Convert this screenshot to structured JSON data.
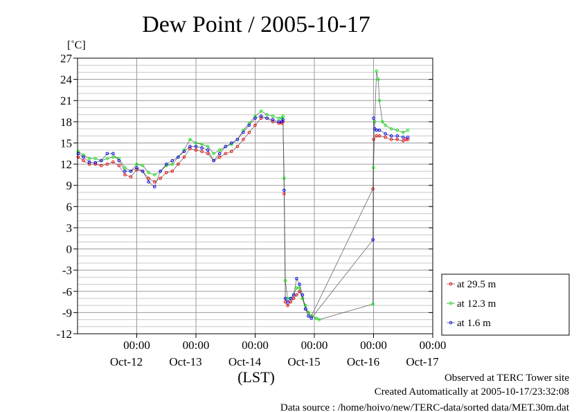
{
  "chart_data": {
    "type": "line",
    "title": "Dew Point / 2005-10-17",
    "ylabel": "[˚C]",
    "xlabel": "(LST)",
    "ylim": [
      -12,
      27
    ],
    "yticks": [
      27,
      24,
      21,
      18,
      15,
      12,
      9,
      6,
      3,
      0,
      -3,
      -6,
      -9,
      -12
    ],
    "xlim": [
      -1,
      5.0
    ],
    "x_unit": "days after Oct-12 00:00 LST",
    "x_ticks": [
      {
        "x": 0,
        "time": "00:00",
        "date": "Oct-12"
      },
      {
        "x": 1,
        "time": "00:00",
        "date": "Oct-13"
      },
      {
        "x": 2,
        "time": "00:00",
        "date": "Oct-14"
      },
      {
        "x": 3,
        "time": "00:00",
        "date": "Oct-15"
      },
      {
        "x": 4,
        "time": "00:00",
        "date": "Oct-16"
      },
      {
        "x": 5,
        "time": "00:00",
        "date": "Oct-17"
      }
    ],
    "grid": true,
    "legend_position": "right",
    "series": [
      {
        "name": "at 29.5 m",
        "color": "#ff0000",
        "points": [
          [
            -0.99,
            13.0
          ],
          [
            -0.9,
            12.5
          ],
          [
            -0.8,
            12.0
          ],
          [
            -0.7,
            12.0
          ],
          [
            -0.6,
            11.8
          ],
          [
            -0.5,
            12.0
          ],
          [
            -0.4,
            12.3
          ],
          [
            -0.3,
            11.8
          ],
          [
            -0.2,
            10.5
          ],
          [
            -0.1,
            10.2
          ],
          [
            0.0,
            11.2
          ],
          [
            0.1,
            11.0
          ],
          [
            0.2,
            10.0
          ],
          [
            0.3,
            9.5
          ],
          [
            0.4,
            10.0
          ],
          [
            0.5,
            10.8
          ],
          [
            0.6,
            11.0
          ],
          [
            0.7,
            12.0
          ],
          [
            0.8,
            13.0
          ],
          [
            0.9,
            14.2
          ],
          [
            1.0,
            14.0
          ],
          [
            1.1,
            13.8
          ],
          [
            1.2,
            13.5
          ],
          [
            1.3,
            12.5
          ],
          [
            1.4,
            13.0
          ],
          [
            1.5,
            13.5
          ],
          [
            1.6,
            13.8
          ],
          [
            1.7,
            14.5
          ],
          [
            1.8,
            15.5
          ],
          [
            1.9,
            16.5
          ],
          [
            2.0,
            17.5
          ],
          [
            2.1,
            18.5
          ],
          [
            2.2,
            18.5
          ],
          [
            2.3,
            18.0
          ],
          [
            2.4,
            17.8
          ],
          [
            2.45,
            17.8
          ],
          [
            2.47,
            18.0
          ],
          [
            2.49,
            7.8
          ],
          [
            2.51,
            -7.5
          ],
          [
            2.55,
            -8.0
          ],
          [
            2.6,
            -7.5
          ],
          [
            2.65,
            -7.0
          ],
          [
            2.7,
            -6.5
          ],
          [
            2.75,
            -6.0
          ],
          [
            2.8,
            -7.0
          ],
          [
            2.85,
            -8.5
          ],
          [
            2.9,
            -9.0
          ],
          [
            2.95,
            -9.5
          ],
          [
            3.99,
            8.5
          ],
          [
            4.0,
            15.5
          ],
          [
            4.05,
            16.0
          ],
          [
            4.1,
            16.0
          ],
          [
            4.2,
            15.8
          ],
          [
            4.3,
            15.5
          ],
          [
            4.4,
            15.5
          ],
          [
            4.5,
            15.3
          ],
          [
            4.55,
            15.5
          ],
          [
            4.58,
            15.5
          ]
        ]
      },
      {
        "name": "at 12.3 m",
        "color": "#00ff00",
        "points": [
          [
            -0.99,
            13.8
          ],
          [
            -0.9,
            13.3
          ],
          [
            -0.8,
            12.8
          ],
          [
            -0.7,
            12.8
          ],
          [
            -0.6,
            12.5
          ],
          [
            -0.5,
            12.8
          ],
          [
            -0.4,
            13.0
          ],
          [
            -0.3,
            12.8
          ],
          [
            -0.2,
            11.5
          ],
          [
            -0.1,
            11.0
          ],
          [
            0.0,
            12.0
          ],
          [
            0.1,
            11.8
          ],
          [
            0.2,
            10.8
          ],
          [
            0.3,
            10.5
          ],
          [
            0.4,
            11.0
          ],
          [
            0.5,
            11.8
          ],
          [
            0.6,
            12.0
          ],
          [
            0.7,
            13.0
          ],
          [
            0.8,
            14.0
          ],
          [
            0.9,
            15.5
          ],
          [
            1.0,
            15.0
          ],
          [
            1.1,
            14.8
          ],
          [
            1.2,
            14.5
          ],
          [
            1.3,
            13.5
          ],
          [
            1.4,
            14.0
          ],
          [
            1.5,
            14.5
          ],
          [
            1.6,
            14.8
          ],
          [
            1.7,
            15.5
          ],
          [
            1.8,
            16.8
          ],
          [
            1.9,
            17.8
          ],
          [
            2.0,
            18.8
          ],
          [
            2.1,
            19.5
          ],
          [
            2.2,
            19.0
          ],
          [
            2.3,
            18.8
          ],
          [
            2.4,
            18.5
          ],
          [
            2.45,
            18.5
          ],
          [
            2.47,
            18.8
          ],
          [
            2.49,
            10.0
          ],
          [
            2.51,
            -4.5
          ],
          [
            2.55,
            -7.0
          ],
          [
            2.6,
            -7.0
          ],
          [
            2.65,
            -6.5
          ],
          [
            2.7,
            -5.5
          ],
          [
            2.75,
            -5.5
          ],
          [
            2.8,
            -7.0
          ],
          [
            2.85,
            -8.0
          ],
          [
            2.9,
            -9.0
          ],
          [
            2.95,
            -9.5
          ],
          [
            3.03,
            -9.8
          ],
          [
            3.08,
            -10.0
          ],
          [
            3.99,
            -7.8
          ],
          [
            4.0,
            11.5
          ],
          [
            4.02,
            18.0
          ],
          [
            4.05,
            25.2
          ],
          [
            4.08,
            24.0
          ],
          [
            4.1,
            21.0
          ],
          [
            4.15,
            18.0
          ],
          [
            4.2,
            17.5
          ],
          [
            4.3,
            17.0
          ],
          [
            4.4,
            16.8
          ],
          [
            4.5,
            16.5
          ],
          [
            4.58,
            16.8
          ]
        ]
      },
      {
        "name": "at 1.6 m",
        "color": "#0000ff",
        "points": [
          [
            -0.99,
            13.5
          ],
          [
            -0.9,
            13.0
          ],
          [
            -0.8,
            12.3
          ],
          [
            -0.7,
            12.2
          ],
          [
            -0.6,
            12.5
          ],
          [
            -0.5,
            13.5
          ],
          [
            -0.4,
            13.5
          ],
          [
            -0.3,
            12.5
          ],
          [
            -0.2,
            11.0
          ],
          [
            -0.1,
            11.0
          ],
          [
            0.0,
            11.5
          ],
          [
            0.1,
            11.0
          ],
          [
            0.2,
            9.5
          ],
          [
            0.3,
            8.8
          ],
          [
            0.4,
            11.0
          ],
          [
            0.5,
            12.0
          ],
          [
            0.6,
            12.5
          ],
          [
            0.7,
            13.0
          ],
          [
            0.8,
            13.8
          ],
          [
            0.9,
            14.5
          ],
          [
            1.0,
            14.5
          ],
          [
            1.1,
            14.3
          ],
          [
            1.2,
            14.0
          ],
          [
            1.3,
            12.5
          ],
          [
            1.4,
            13.5
          ],
          [
            1.5,
            14.5
          ],
          [
            1.6,
            15.0
          ],
          [
            1.7,
            15.5
          ],
          [
            1.8,
            16.5
          ],
          [
            1.9,
            17.5
          ],
          [
            2.0,
            18.5
          ],
          [
            2.1,
            18.8
          ],
          [
            2.2,
            18.5
          ],
          [
            2.3,
            18.3
          ],
          [
            2.4,
            18.0
          ],
          [
            2.45,
            18.0
          ],
          [
            2.47,
            18.3
          ],
          [
            2.49,
            8.3
          ],
          [
            2.51,
            -7.0
          ],
          [
            2.55,
            -7.5
          ],
          [
            2.6,
            -7.0
          ],
          [
            2.65,
            -6.5
          ],
          [
            2.7,
            -4.2
          ],
          [
            2.75,
            -5.0
          ],
          [
            2.8,
            -6.5
          ],
          [
            2.85,
            -8.5
          ],
          [
            2.9,
            -9.5
          ],
          [
            2.95,
            -9.8
          ],
          [
            3.99,
            1.3
          ],
          [
            4.0,
            18.5
          ],
          [
            4.02,
            17.0
          ],
          [
            4.05,
            16.8
          ],
          [
            4.1,
            16.8
          ],
          [
            4.2,
            16.3
          ],
          [
            4.3,
            16.0
          ],
          [
            4.4,
            16.0
          ],
          [
            4.5,
            15.8
          ],
          [
            4.58,
            15.8
          ]
        ]
      }
    ]
  },
  "footer": {
    "line1": "Observed at TERC Tower site",
    "line2": "Created Automatically at 2005-10-17/23:32:08",
    "line3": "Data source : /home/hoivo/new/TERC-data/sorted  data/MET.30m.dat"
  }
}
